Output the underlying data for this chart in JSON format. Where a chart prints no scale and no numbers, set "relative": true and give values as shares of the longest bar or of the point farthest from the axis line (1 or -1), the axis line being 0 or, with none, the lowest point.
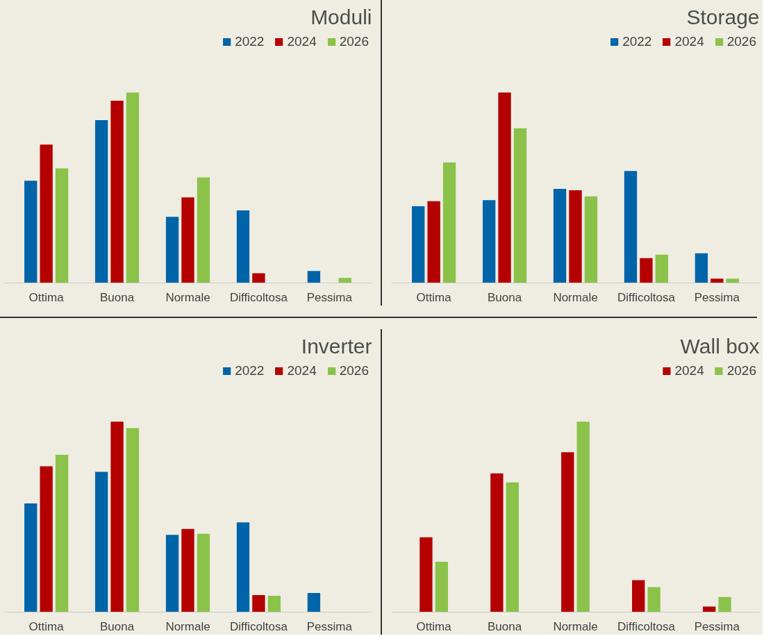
{
  "chart_data": [
    {
      "type": "bar",
      "title": "Moduli",
      "relative": true,
      "legend": "top right",
      "categories": [
        "Ottima",
        "Buona",
        "Normale",
        "Difficoltosa",
        "Pessima"
      ],
      "series": [
        {
          "name": "2022",
          "color": "#0064a8",
          "values": [
            0.537,
            0.855,
            0.347,
            0.381,
            0.063
          ]
        },
        {
          "name": "2024",
          "color": "#b40000",
          "values": [
            0.727,
            0.957,
            0.449,
            0.051,
            null
          ]
        },
        {
          "name": "2026",
          "color": "#8bc24a",
          "values": [
            0.602,
            1.0,
            0.554,
            null,
            0.026
          ]
        }
      ]
    },
    {
      "type": "bar",
      "title": "Storage",
      "relative": true,
      "legend": "top right",
      "categories": [
        "Ottima",
        "Buona",
        "Normale",
        "Difficoltosa",
        "Pessima"
      ],
      "series": [
        {
          "name": "2022",
          "color": "#0064a8",
          "values": [
            0.403,
            0.435,
            0.494,
            0.588,
            0.156
          ]
        },
        {
          "name": "2024",
          "color": "#b40000",
          "values": [
            0.429,
            1.0,
            0.487,
            0.13,
            0.023
          ]
        },
        {
          "name": "2026",
          "color": "#8bc24a",
          "values": [
            0.633,
            0.812,
            0.455,
            0.149,
            0.023
          ]
        }
      ]
    },
    {
      "type": "bar",
      "title": "Inverter",
      "relative": true,
      "legend": "top right",
      "categories": [
        "Ottima",
        "Buona",
        "Normale",
        "Difficoltosa",
        "Pessima"
      ],
      "series": [
        {
          "name": "2022",
          "color": "#0064a8",
          "values": [
            0.571,
            0.737,
            0.406,
            0.471,
            0.1
          ]
        },
        {
          "name": "2024",
          "color": "#b40000",
          "values": [
            0.766,
            1.0,
            0.437,
            0.089,
            null
          ]
        },
        {
          "name": "2026",
          "color": "#8bc24a",
          "values": [
            0.826,
            0.966,
            0.411,
            0.086,
            null
          ]
        }
      ]
    },
    {
      "type": "bar",
      "title": "Wall box",
      "relative": true,
      "legend": "top right",
      "categories": [
        "Ottima",
        "Buona",
        "Normale",
        "Difficoltosa",
        "Pessima"
      ],
      "series": [
        {
          "name": "2024",
          "color": "#b40000",
          "values": [
            0.393,
            0.728,
            0.84,
            0.168,
            0.029
          ]
        },
        {
          "name": "2026",
          "color": "#8bc24a",
          "values": [
            0.264,
            0.681,
            1.0,
            0.131,
            0.079
          ]
        }
      ]
    }
  ]
}
